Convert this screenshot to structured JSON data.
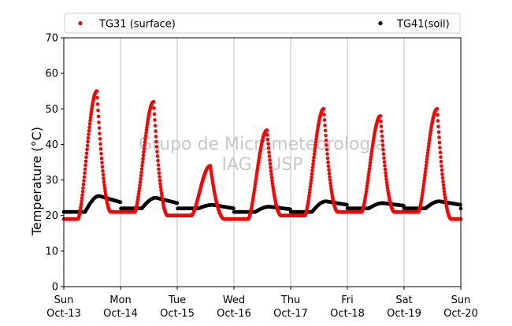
{
  "chart_data": {
    "type": "scatter",
    "title": "",
    "xlabel": "",
    "ylabel": "Temperature (°C)",
    "ylim": [
      0,
      70
    ],
    "yticks": [
      0,
      10,
      20,
      30,
      40,
      50,
      60,
      70
    ],
    "xticks": [
      {
        "day": "Sun",
        "date": "Oct-13"
      },
      {
        "day": "Mon",
        "date": "Oct-14"
      },
      {
        "day": "Tue",
        "date": "Oct-15"
      },
      {
        "day": "Wed",
        "date": "Oct-16"
      },
      {
        "day": "Thu",
        "date": "Oct-17"
      },
      {
        "day": "Fri",
        "date": "Oct-18"
      },
      {
        "day": "Sat",
        "date": "Oct-19"
      },
      {
        "day": "Sun",
        "date": "Oct-20"
      }
    ],
    "grid": "vertical",
    "legend_position": "top",
    "watermark": [
      "Grupo de Micrometeorologia",
      "IAG / USP"
    ],
    "series": [
      {
        "name": "TG31 (surface)",
        "color": "#ff0000",
        "daily_extremes": [
          {
            "day": "Oct-13",
            "min": 19,
            "max": 55
          },
          {
            "day": "Oct-14",
            "min": 21,
            "max": 52
          },
          {
            "day": "Oct-15",
            "min": 20,
            "max": 34
          },
          {
            "day": "Oct-16",
            "min": 19,
            "max": 44
          },
          {
            "day": "Oct-17",
            "min": 20,
            "max": 50
          },
          {
            "day": "Oct-18",
            "min": 21,
            "max": 48
          },
          {
            "day": "Oct-19",
            "min": 21,
            "max": 50
          },
          {
            "day": "Oct-20",
            "min": 19
          }
        ]
      },
      {
        "name": "TG41(soil)",
        "color": "#000000",
        "daily_extremes": [
          {
            "day": "Oct-13",
            "min": 21,
            "max": 25.5
          },
          {
            "day": "Oct-14",
            "min": 22,
            "max": 25
          },
          {
            "day": "Oct-15",
            "min": 22,
            "max": 23
          },
          {
            "day": "Oct-16",
            "min": 21,
            "max": 22.5
          },
          {
            "day": "Oct-17",
            "min": 21,
            "max": 24
          },
          {
            "day": "Oct-18",
            "min": 22,
            "max": 23.5
          },
          {
            "day": "Oct-19",
            "min": 22,
            "max": 24
          },
          {
            "day": "Oct-20",
            "min": 22
          }
        ]
      }
    ]
  }
}
